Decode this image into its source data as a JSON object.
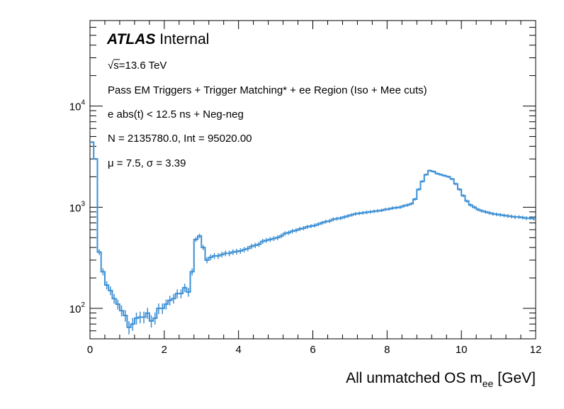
{
  "chart_data": {
    "type": "line",
    "style": "step-histogram",
    "title": "",
    "xlabel_main": "All unmatched OS m",
    "xlabel_sub": "ee",
    "xlabel_unit": "[GeV]",
    "ylabel": "",
    "xlim": [
      0,
      12
    ],
    "ylim": [
      50,
      70000
    ],
    "yscale": "log",
    "x_ticks": [
      "0",
      "2",
      "4",
      "6",
      "8",
      "10",
      "12"
    ],
    "y_ticks": [
      {
        "base": "10",
        "exp": "2",
        "value": 100
      },
      {
        "base": "10",
        "exp": "3",
        "value": 1000
      },
      {
        "base": "10",
        "exp": "4",
        "value": 10000
      }
    ],
    "line_color": "#3c8fd4",
    "bin_width": 0.1,
    "series": [
      {
        "name": "All unmatched OS mee",
        "values": [
          4400,
          3000,
          360,
          230,
          170,
          150,
          125,
          110,
          95,
          85,
          65,
          70,
          80,
          82,
          82,
          90,
          75,
          80,
          100,
          100,
          110,
          120,
          125,
          140,
          140,
          160,
          145,
          230,
          480,
          520,
          400,
          300,
          320,
          330,
          330,
          340,
          350,
          350,
          360,
          365,
          370,
          380,
          390,
          410,
          420,
          430,
          460,
          470,
          480,
          490,
          500,
          520,
          550,
          560,
          580,
          590,
          610,
          620,
          640,
          650,
          660,
          680,
          700,
          720,
          730,
          760,
          770,
          780,
          800,
          820,
          840,
          860,
          870,
          880,
          890,
          900,
          910,
          920,
          930,
          950,
          960,
          980,
          990,
          1000,
          1030,
          1050,
          1080,
          1200,
          1500,
          1800,
          2100,
          2300,
          2250,
          2150,
          2100,
          2050,
          2000,
          1900,
          1700,
          1500,
          1300,
          1150,
          1050,
          1000,
          950,
          920,
          900,
          880,
          860,
          850,
          840,
          830,
          820,
          810,
          800,
          800,
          790,
          780,
          780,
          770
        ]
      }
    ],
    "annotations": [
      {
        "id": "atlas",
        "bold": "ATLAS",
        "rest": " Internal"
      },
      {
        "id": "energy",
        "sqrt_symbol": "√",
        "text": "s=13.6 TeV"
      },
      {
        "id": "selection",
        "text": "Pass EM Triggers + Trigger Matching* + ee Region (Iso + Mee cuts)"
      },
      {
        "id": "timing",
        "text": "e abs(t) < 12.5 ns + Neg-neg"
      },
      {
        "id": "counts",
        "text": "N = 2135780.0, Int  = 95020.00"
      },
      {
        "id": "fit",
        "text": "μ = 7.5, σ = 3.39"
      }
    ]
  }
}
